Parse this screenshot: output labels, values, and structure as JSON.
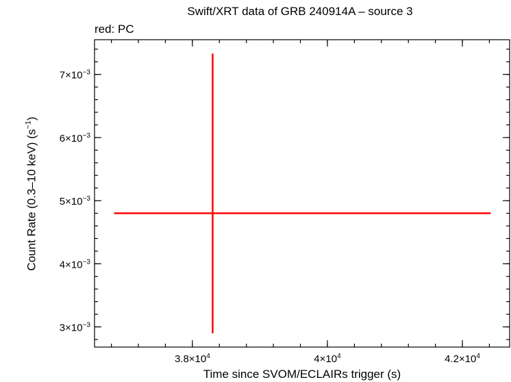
{
  "chart_data": {
    "type": "scatter",
    "title": "Swift/XRT data of GRB 240914A – source 3",
    "subtitle": "red: PC",
    "xlabel": "Time since SVOM/ECLAIRs trigger (s)",
    "ylabel_main": "Count Rate (0.3–10 keV) (s",
    "ylabel_sup": "−1",
    "ylabel_end": ")",
    "xlim": [
      36550,
      42700
    ],
    "ylim": [
      0.00268,
      0.00755
    ],
    "xticks": [
      {
        "value": 38000,
        "mant": "3.8×10",
        "exp": "4"
      },
      {
        "value": 40000,
        "mant": "4×10",
        "exp": "4"
      },
      {
        "value": 42000,
        "mant": "4.2×10",
        "exp": "4"
      }
    ],
    "xminor_step": 400,
    "yticks": [
      {
        "value": 0.003,
        "mant": "3×10",
        "exp": "−3"
      },
      {
        "value": 0.004,
        "mant": "4×10",
        "exp": "−3"
      },
      {
        "value": 0.005,
        "mant": "5×10",
        "exp": "−3"
      },
      {
        "value": 0.006,
        "mant": "6×10",
        "exp": "−3"
      },
      {
        "value": 0.007,
        "mant": "7×10",
        "exp": "−3"
      }
    ],
    "yminor_step": 0.0002,
    "series": [
      {
        "color": "#ff0000",
        "points": [
          {
            "x": 38300,
            "y": 0.0048,
            "xerr_low": 1460,
            "xerr_high": 4120,
            "yerr_low": 0.0019,
            "yerr_high": 0.00253
          }
        ]
      }
    ]
  }
}
